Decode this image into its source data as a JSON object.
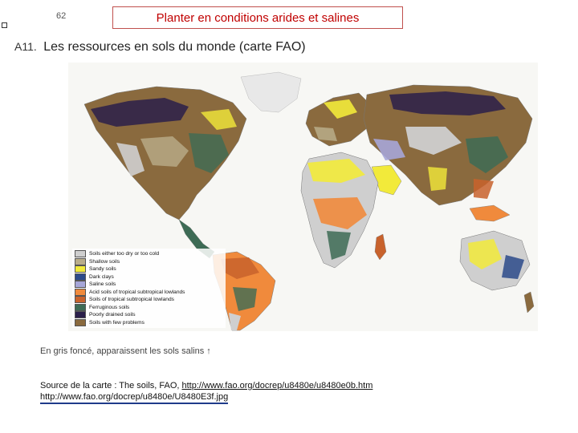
{
  "page_number": "62",
  "title": "Planter en conditions arides et salines",
  "heading": {
    "number": "A11.",
    "text": "Les ressources en sols du monde (carte FAO)"
  },
  "legend": {
    "items": [
      {
        "label": "Soils either too dry or too cold",
        "color": "#cfcfcf"
      },
      {
        "label": "Shallow soils",
        "color": "#b9ad8a"
      },
      {
        "label": "Sandy soils",
        "color": "#f2ea3a"
      },
      {
        "label": "Dark clays",
        "color": "#2c4a8a"
      },
      {
        "label": "Saline soils",
        "color": "#a6a6d8"
      },
      {
        "label": "Acid soils of tropical subtropical lowlands",
        "color": "#f08a3c"
      },
      {
        "label": "Soils of tropical subtropical lowlands",
        "color": "#c8622c"
      },
      {
        "label": "Ferruginous soils",
        "color": "#3d6b55"
      },
      {
        "label": "Poorly drained soils",
        "color": "#2a1f4a"
      },
      {
        "label": "Soils with few problems",
        "color": "#8a6a3e"
      }
    ]
  },
  "caption": "En gris foncé, apparaissent les sols salins ↑",
  "source": {
    "prefix": "Source de la carte : The soils, FAO, ",
    "link1": "http://www.fao.org/docrep/u8480e/u8480e0b.htm",
    "link2": "http://www.fao.org/docrep/u8480e/U8480E3f.jpg"
  }
}
